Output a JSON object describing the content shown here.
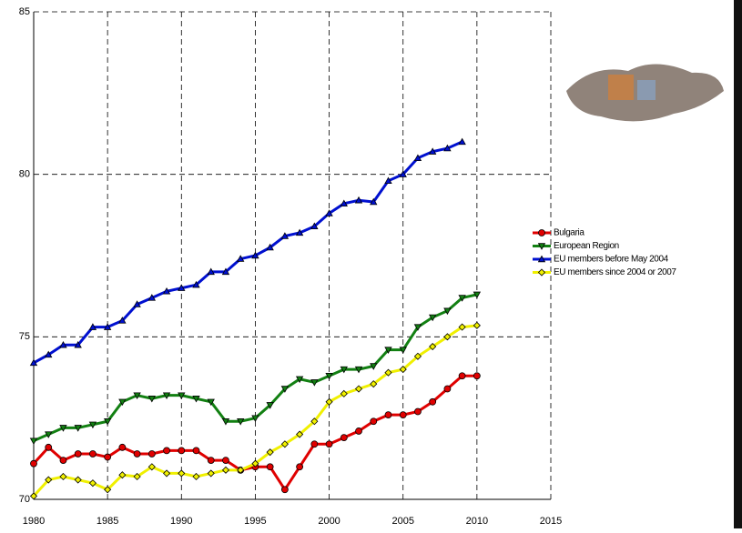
{
  "chart_data": {
    "type": "line",
    "x": [
      1980,
      1981,
      1982,
      1983,
      1984,
      1985,
      1986,
      1987,
      1988,
      1989,
      1990,
      1991,
      1992,
      1993,
      1994,
      1995,
      1996,
      1997,
      1998,
      1999,
      2000,
      2001,
      2002,
      2003,
      2004,
      2005,
      2006,
      2007,
      2008,
      2009,
      2010
    ],
    "series": [
      {
        "name": "Bulgaria",
        "color": "#e00000",
        "marker": "circle",
        "values": [
          71.1,
          71.6,
          71.2,
          71.4,
          71.4,
          71.3,
          71.6,
          71.4,
          71.4,
          71.5,
          71.5,
          71.5,
          71.2,
          71.2,
          70.9,
          71.0,
          71.0,
          70.3,
          71.0,
          71.7,
          71.7,
          71.9,
          72.1,
          72.4,
          72.6,
          72.6,
          72.7,
          73.0,
          73.4,
          73.8,
          73.8
        ]
      },
      {
        "name": "European Region",
        "color": "#128012",
        "marker": "triangle-down",
        "values": [
          71.8,
          72.0,
          72.2,
          72.2,
          72.3,
          72.4,
          73.0,
          73.2,
          73.1,
          73.2,
          73.2,
          73.1,
          73.0,
          72.4,
          72.4,
          72.5,
          72.9,
          73.4,
          73.7,
          73.6,
          73.8,
          74.0,
          74.0,
          74.1,
          74.6,
          74.6,
          75.3,
          75.6,
          75.8,
          76.2,
          76.3
        ]
      },
      {
        "name": "EU members before May 2004",
        "color": "#0010d0",
        "marker": "triangle-up",
        "values": [
          74.2,
          74.45,
          74.75,
          74.75,
          75.3,
          75.3,
          75.5,
          76.0,
          76.2,
          76.4,
          76.5,
          76.6,
          77.0,
          77.0,
          77.4,
          77.5,
          77.75,
          78.1,
          78.2,
          78.4,
          78.8,
          79.1,
          79.2,
          79.15,
          79.8,
          80.0,
          80.5,
          80.7,
          80.8,
          81.0,
          null
        ]
      },
      {
        "name": "EU members since 2004 or 2007",
        "color": "#f0f000",
        "marker": "diamond",
        "values": [
          70.1,
          70.6,
          70.7,
          70.6,
          70.5,
          70.3,
          70.75,
          70.7,
          71.0,
          70.8,
          70.8,
          70.7,
          70.8,
          70.9,
          70.9,
          71.1,
          71.45,
          71.7,
          72.0,
          72.4,
          73.0,
          73.25,
          73.4,
          73.55,
          73.9,
          74.0,
          74.4,
          74.7,
          75.0,
          75.3,
          75.35
        ]
      }
    ],
    "xlim": [
      1980,
      2015
    ],
    "xticks": [
      1980,
      1985,
      1990,
      1995,
      2000,
      2005,
      2010,
      2015
    ],
    "ylim": [
      70,
      85
    ],
    "yticks": [
      70,
      75,
      80,
      85
    ],
    "grid": true
  }
}
